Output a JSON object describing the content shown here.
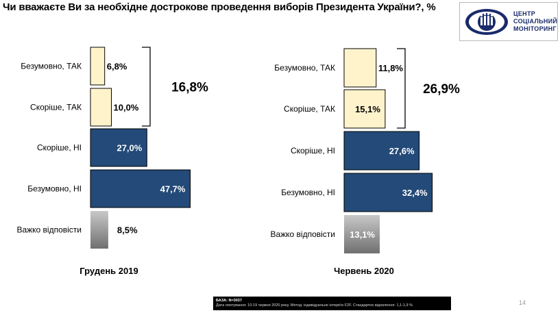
{
  "title": "Чи вважаєте Ви за необхідне дострокове проведення виборів Президента  України?, %",
  "logo": {
    "line1": "ЦЕНТР",
    "line2": "СОЦІАЛЬНИЙ",
    "line3": "МОНІТОРИНГ"
  },
  "colors": {
    "yes": "#fff3cc",
    "no": "#234a78",
    "unsure_dark": "#707070",
    "unsure_light": "#c8c8c8"
  },
  "chart_data": [
    {
      "type": "bar",
      "orientation": "horizontal",
      "title": "Грудень 2019",
      "categories": [
        "Безумовно, ТАК",
        "Скоріше, ТАК",
        "Скоріше, НІ",
        "Безумовно, НІ",
        "Важко відповісти"
      ],
      "values": [
        6.8,
        10.0,
        27.0,
        47.7,
        8.5
      ],
      "value_labels": [
        "6,8%",
        "10,0%",
        "27,0%",
        "47,7%",
        "8,5%"
      ],
      "bracket_total": "16,8%",
      "legend": "none",
      "grid": false
    },
    {
      "type": "bar",
      "orientation": "horizontal",
      "title": "Червень 2020",
      "categories": [
        "Безумовно, ТАК",
        "Скоріше, ТАК",
        "Скоріше, НІ",
        "Безумовно, НІ",
        "Важко відповісти"
      ],
      "values": [
        11.8,
        15.1,
        27.6,
        32.4,
        13.1
      ],
      "value_labels": [
        "11,8%",
        "15,1%",
        "27,6%",
        "32,4%",
        "13,1%"
      ],
      "bracket_total": "26,9%",
      "legend": "none",
      "grid": false
    }
  ],
  "footer": {
    "base": "БАЗА: N=3037",
    "note": "Дата опитування: 10-19 червня 2020 року. Метод: індивідуальне інтерв'ю F2F. Стандартне відхилення: 1,1-1,9 %"
  },
  "page_number": "14"
}
